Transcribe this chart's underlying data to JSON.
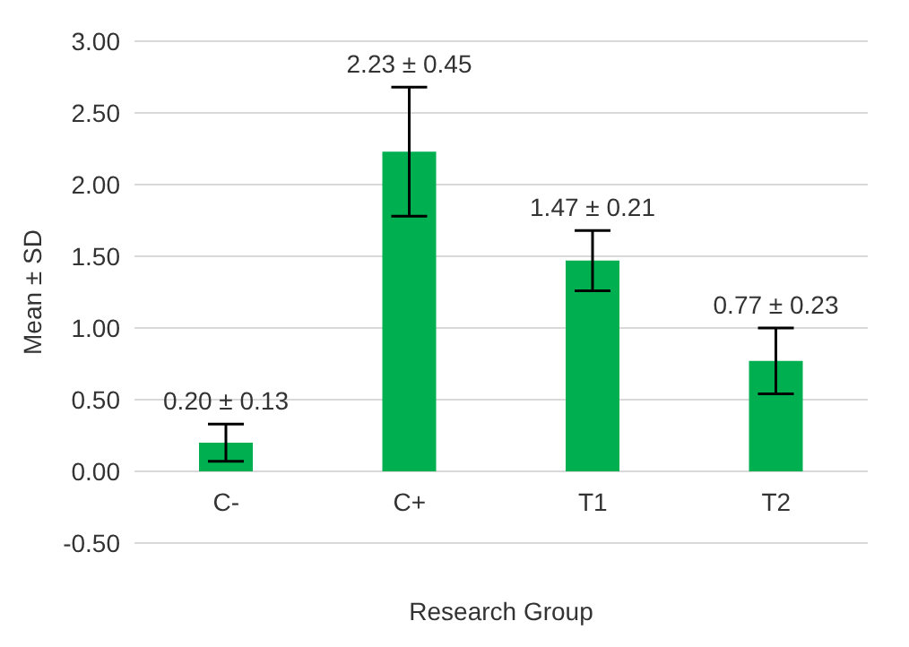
{
  "chart_data": {
    "type": "bar",
    "xlabel": "Research Group",
    "ylabel": "Mean ± SD",
    "categories": [
      "C-",
      "C+",
      "T1",
      "T2"
    ],
    "values": [
      0.2,
      2.23,
      1.47,
      0.77
    ],
    "errors": [
      0.13,
      0.45,
      0.21,
      0.23
    ],
    "value_labels": [
      "0.20 ± 0.13",
      "2.23 ± 0.45",
      "1.47 ± 0.21",
      "0.77 ± 0.23"
    ],
    "color": "#00b050",
    "ylim": [
      -0.5,
      3
    ],
    "yticks": [
      {
        "value": -0.5,
        "label": "-0.50"
      },
      {
        "value": 0,
        "label": "0.00"
      },
      {
        "value": 0.5,
        "label": "0.50"
      },
      {
        "value": 1,
        "label": "1.00"
      },
      {
        "value": 1.5,
        "label": "1.50"
      },
      {
        "value": 2,
        "label": "2.00"
      },
      {
        "value": 2.5,
        "label": "2.50"
      },
      {
        "value": 3,
        "label": "3.00"
      }
    ],
    "grid": "y",
    "legend": false
  }
}
